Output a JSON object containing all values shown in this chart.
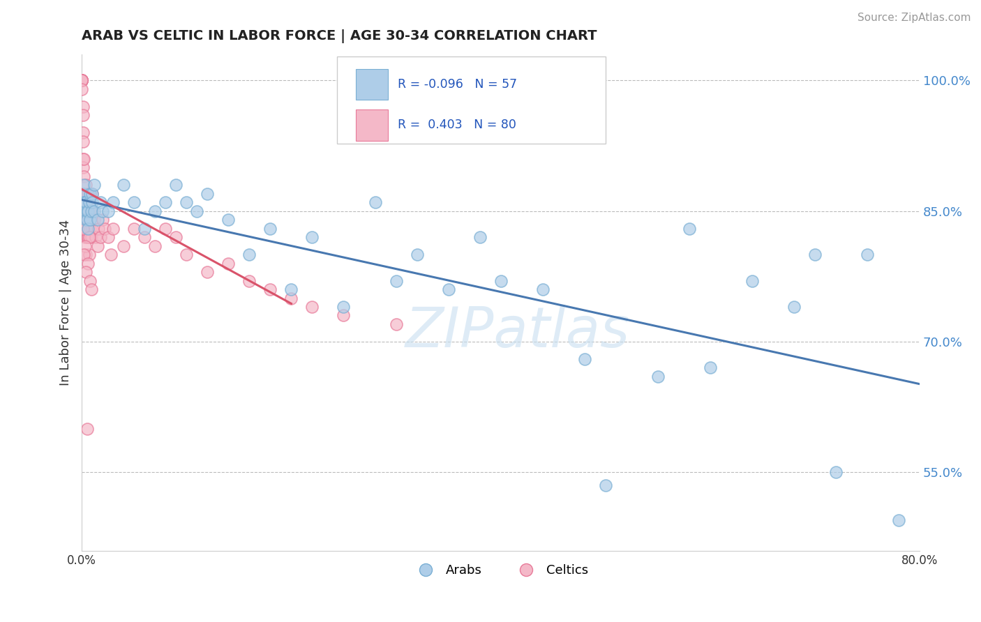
{
  "title": "ARAB VS CELTIC IN LABOR FORCE | AGE 30-34 CORRELATION CHART",
  "source": "Source: ZipAtlas.com",
  "ylabel": "In Labor Force | Age 30-34",
  "xlim": [
    0.0,
    0.8
  ],
  "ylim": [
    0.46,
    1.03
  ],
  "ytick_values": [
    0.55,
    0.7,
    0.85,
    1.0
  ],
  "ytick_labels": [
    "55.0%",
    "70.0%",
    "85.0%",
    "100.0%"
  ],
  "arab_color": "#aecde8",
  "celtic_color": "#f4b8c8",
  "arab_edge": "#7aafd4",
  "celtic_edge": "#e87a99",
  "trend_arab_color": "#4878b0",
  "trend_celtic_color": "#d9536a",
  "legend_arab_label": "Arabs",
  "legend_celtic_label": "Celtics",
  "R_arab": -0.096,
  "N_arab": 57,
  "R_celtic": 0.403,
  "N_celtic": 80,
  "watermark": "ZIPatlas",
  "arab_scatter_x": [
    0.001,
    0.002,
    0.002,
    0.003,
    0.003,
    0.004,
    0.004,
    0.005,
    0.005,
    0.006,
    0.006,
    0.007,
    0.008,
    0.008,
    0.009,
    0.01,
    0.01,
    0.012,
    0.012,
    0.015,
    0.018,
    0.02,
    0.025,
    0.03,
    0.04,
    0.05,
    0.06,
    0.07,
    0.08,
    0.09,
    0.1,
    0.11,
    0.12,
    0.14,
    0.16,
    0.18,
    0.2,
    0.22,
    0.25,
    0.28,
    0.3,
    0.32,
    0.35,
    0.38,
    0.4,
    0.44,
    0.48,
    0.5,
    0.55,
    0.58,
    0.6,
    0.64,
    0.68,
    0.7,
    0.72,
    0.75,
    0.78
  ],
  "arab_scatter_y": [
    0.87,
    0.86,
    0.88,
    0.86,
    0.85,
    0.84,
    0.86,
    0.85,
    0.84,
    0.85,
    0.83,
    0.86,
    0.87,
    0.84,
    0.85,
    0.87,
    0.86,
    0.88,
    0.85,
    0.84,
    0.86,
    0.85,
    0.85,
    0.86,
    0.88,
    0.86,
    0.83,
    0.85,
    0.86,
    0.88,
    0.86,
    0.85,
    0.87,
    0.84,
    0.8,
    0.83,
    0.76,
    0.82,
    0.74,
    0.86,
    0.77,
    0.8,
    0.76,
    0.82,
    0.77,
    0.76,
    0.68,
    0.535,
    0.66,
    0.83,
    0.67,
    0.77,
    0.74,
    0.8,
    0.55,
    0.8,
    0.495
  ],
  "celtic_scatter_x": [
    0.0,
    0.0,
    0.0,
    0.0,
    0.0,
    0.0,
    0.0,
    0.0,
    0.0,
    0.0,
    0.0,
    0.0,
    0.0,
    0.001,
    0.001,
    0.001,
    0.001,
    0.001,
    0.001,
    0.002,
    0.002,
    0.002,
    0.003,
    0.003,
    0.003,
    0.003,
    0.004,
    0.004,
    0.004,
    0.005,
    0.005,
    0.005,
    0.006,
    0.006,
    0.007,
    0.007,
    0.008,
    0.009,
    0.01,
    0.01,
    0.01,
    0.012,
    0.013,
    0.015,
    0.016,
    0.018,
    0.02,
    0.022,
    0.025,
    0.028,
    0.03,
    0.04,
    0.05,
    0.06,
    0.07,
    0.08,
    0.09,
    0.1,
    0.12,
    0.14,
    0.16,
    0.18,
    0.2,
    0.22,
    0.25,
    0.3,
    0.004,
    0.006,
    0.002,
    0.003,
    0.005,
    0.001,
    0.007,
    0.003,
    0.002,
    0.006,
    0.004,
    0.008,
    0.009,
    0.005
  ],
  "celtic_scatter_y": [
    1.0,
    1.0,
    1.0,
    1.0,
    1.0,
    1.0,
    1.0,
    1.0,
    1.0,
    1.0,
    1.0,
    1.0,
    0.99,
    0.97,
    0.96,
    0.94,
    0.93,
    0.91,
    0.9,
    0.91,
    0.89,
    0.87,
    0.86,
    0.85,
    0.84,
    0.82,
    0.84,
    0.83,
    0.8,
    0.86,
    0.84,
    0.82,
    0.83,
    0.82,
    0.85,
    0.8,
    0.83,
    0.82,
    0.87,
    0.85,
    0.83,
    0.84,
    0.82,
    0.81,
    0.83,
    0.82,
    0.84,
    0.83,
    0.82,
    0.8,
    0.83,
    0.81,
    0.83,
    0.82,
    0.81,
    0.83,
    0.82,
    0.8,
    0.78,
    0.79,
    0.77,
    0.76,
    0.75,
    0.74,
    0.73,
    0.72,
    0.88,
    0.87,
    0.86,
    0.85,
    0.84,
    0.83,
    0.82,
    0.81,
    0.8,
    0.79,
    0.78,
    0.77,
    0.76,
    0.6
  ]
}
